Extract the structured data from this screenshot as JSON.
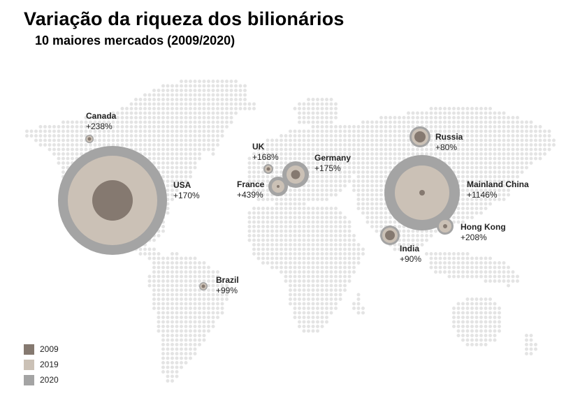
{
  "title": "Variação da riqueza dos bilionários",
  "subtitle": "10 maiores mercados (2009/2020)",
  "colors": {
    "y2009": "#857970",
    "y2019": "#cbc1b6",
    "y2020": "#a4a4a4",
    "dots": "#e4e4e4"
  },
  "legend": [
    {
      "label": "2009",
      "color": "#857970"
    },
    {
      "label": "2019",
      "color": "#cbc1b6"
    },
    {
      "label": "2020",
      "color": "#a4a4a4"
    }
  ],
  "markets": [
    {
      "name": "Canada",
      "change": "+238%"
    },
    {
      "name": "USA",
      "change": "+170%"
    },
    {
      "name": "Brazil",
      "change": "+99%"
    },
    {
      "name": "UK",
      "change": "+168%"
    },
    {
      "name": "Germany",
      "change": "+175%"
    },
    {
      "name": "France",
      "change": "+439%"
    },
    {
      "name": "Russia",
      "change": "+80%"
    },
    {
      "name": "Mainland China",
      "change": "+1146%"
    },
    {
      "name": "Hong Kong",
      "change": "+208%"
    },
    {
      "name": "India",
      "change": "+90%"
    }
  ]
}
